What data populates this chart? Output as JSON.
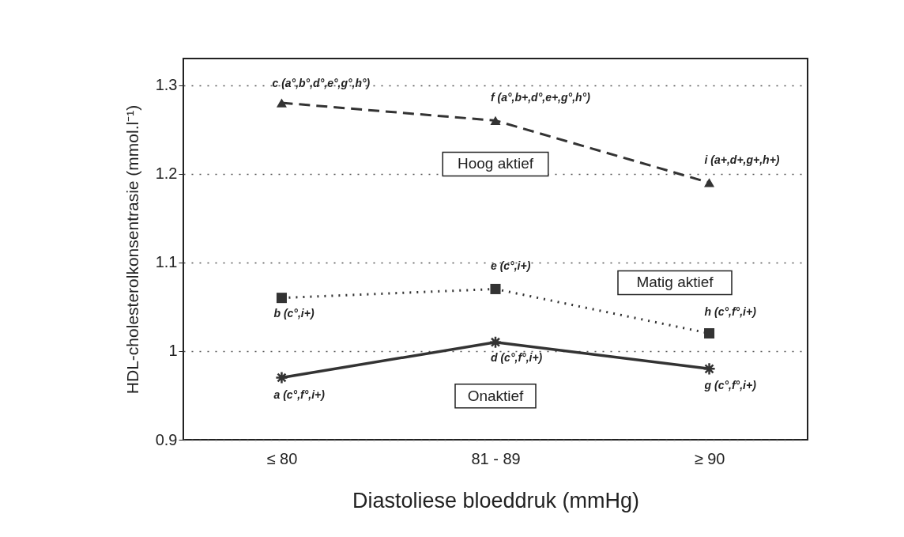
{
  "chart_data": {
    "type": "line",
    "xlabel": "Diastoliese bloeddruk (mmHg)",
    "ylabel": "HDL-cholesterolkonsentrasie (mmol.l⁻¹)",
    "categories": [
      "≤ 80",
      "81 - 89",
      "≥ 90"
    ],
    "series": [
      {
        "name": "Hoog aktief",
        "color": "#333333",
        "values": [
          1.28,
          1.26,
          1.19
        ],
        "marker": "triangle",
        "line_style": "dashed"
      },
      {
        "name": "Matig aktief",
        "color": "#333333",
        "values": [
          1.06,
          1.07,
          1.02
        ],
        "marker": "square",
        "line_style": "dotted"
      },
      {
        "name": "Onaktief",
        "color": "#333333",
        "values": [
          0.97,
          1.01,
          0.98
        ],
        "marker": "cross",
        "line_style": "solid"
      }
    ],
    "ylim": [
      0.9,
      1.33
    ],
    "yticks": [
      0.9,
      1,
      1.1,
      1.2,
      1.3
    ],
    "grid": "y",
    "annotations": [
      {
        "text": "c (a°,b°,d°,e°,g°,h°)",
        "x": "≤ 80",
        "y": 1.28
      },
      {
        "text": "f (a°,b+,d°,e+,g°,h°)",
        "x": "81 - 89",
        "y": 1.26
      },
      {
        "text": "i (a+,d+,g+,h+)",
        "x": "≥ 90",
        "y": 1.19
      },
      {
        "text": "b (c°,i+)",
        "x": "≤ 80",
        "y": 1.06
      },
      {
        "text": "e (c°,i+)",
        "x": "81 - 89",
        "y": 1.07
      },
      {
        "text": "h (c°,f°,i+)",
        "x": "≥ 90",
        "y": 1.02
      },
      {
        "text": "a (c°,f°,i+)",
        "x": "≤ 80",
        "y": 0.97
      },
      {
        "text": "d (c°,f°,i+)",
        "x": "81 - 89",
        "y": 1.01
      },
      {
        "text": "g (c°,f°,i+)",
        "x": "≥ 90",
        "y": 0.98
      }
    ]
  }
}
